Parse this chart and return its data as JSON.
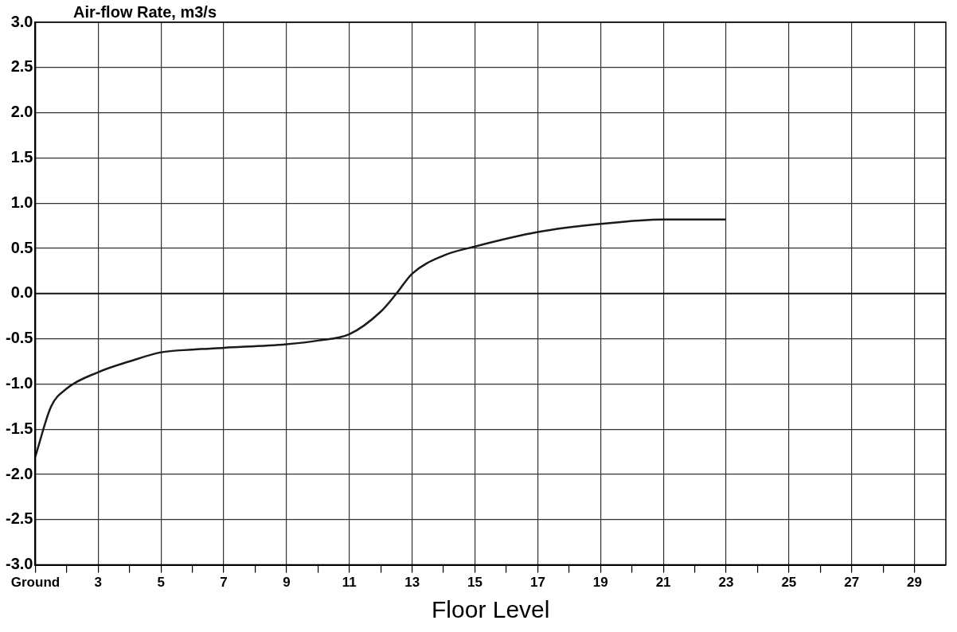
{
  "chart_data": {
    "type": "line",
    "ylabel": "Air-flow Rate, m3/s",
    "xlabel": "Floor Level",
    "x": [
      1,
      1.5,
      2,
      3,
      4,
      5,
      6,
      7,
      9,
      10,
      11,
      12,
      12.5,
      13,
      14,
      15,
      17,
      19,
      21,
      22,
      23
    ],
    "series": [
      {
        "color": "#1a1a1a",
        "values": [
          -1.8,
          -1.25,
          -1.05,
          -0.87,
          -0.75,
          -0.65,
          -0.62,
          -0.6,
          -0.56,
          -0.52,
          -0.45,
          -0.2,
          0.0,
          0.22,
          0.42,
          0.52,
          0.68,
          0.77,
          0.82,
          0.82,
          0.82
        ]
      }
    ],
    "xlim": [
      1,
      30
    ],
    "xticks": [
      {
        "value": 1,
        "label": "Ground"
      },
      {
        "value": 2,
        "label": null
      },
      3,
      {
        "value": 4,
        "label": null
      },
      5,
      {
        "value": 6,
        "label": null
      },
      7,
      {
        "value": 8,
        "label": null
      },
      9,
      {
        "value": 10,
        "label": null
      },
      11,
      {
        "value": 12,
        "label": null
      },
      13,
      {
        "value": 14,
        "label": null
      },
      15,
      {
        "value": 16,
        "label": null
      },
      17,
      {
        "value": 18,
        "label": null
      },
      19,
      {
        "value": 20,
        "label": null
      },
      21,
      {
        "value": 22,
        "label": null
      },
      23,
      {
        "value": 24,
        "label": null
      },
      25,
      {
        "value": 26,
        "label": null
      },
      27,
      {
        "value": 28,
        "label": null
      },
      29
    ],
    "ylim": [
      -3,
      3
    ],
    "yticks": [
      {
        "value": -3,
        "label": "-3.0"
      },
      {
        "value": -2.5,
        "label": "-2.5"
      },
      {
        "value": -2,
        "label": "-2.0"
      },
      {
        "value": -1.5,
        "label": "-1.5"
      },
      {
        "value": -1,
        "label": "-1.0"
      },
      {
        "value": -0.5,
        "label": "-0.5"
      },
      {
        "value": 0,
        "label": "0.0"
      },
      {
        "value": 0.5,
        "label": "0.5"
      },
      {
        "value": 1,
        "label": "1.0"
      },
      {
        "value": 1.5,
        "label": "1.5"
      },
      {
        "value": 2,
        "label": "2.0"
      },
      {
        "value": 2.5,
        "label": "2.5"
      },
      {
        "value": 3,
        "label": "3.0"
      }
    ],
    "grid": true,
    "legend": false,
    "marker": "none",
    "line_style": "solid",
    "ref_lines": [
      {
        "axis": "y",
        "value": 0,
        "color": "#1a1a1a",
        "line_style": "solid"
      }
    ]
  }
}
